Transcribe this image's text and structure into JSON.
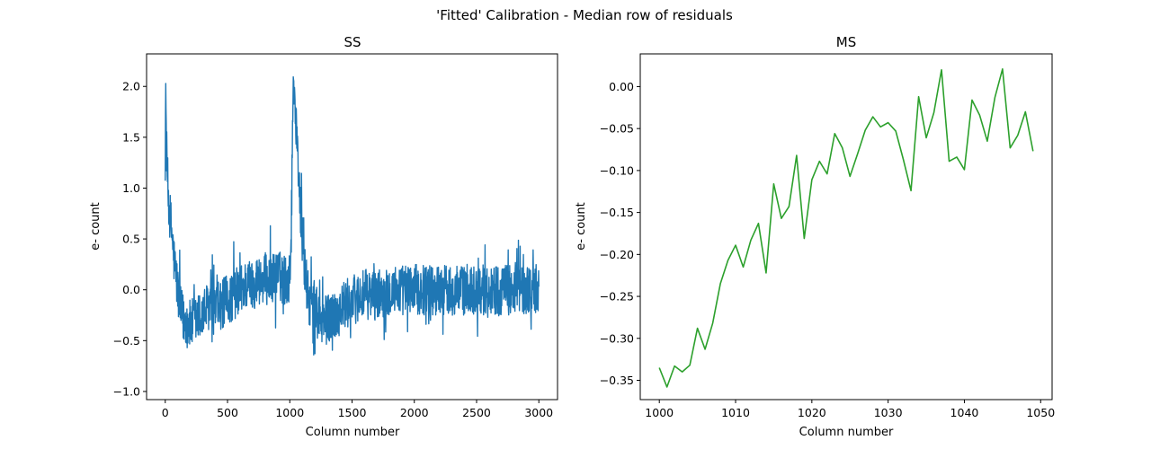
{
  "figure": {
    "suptitle": "'Fitted' Calibration - Median row of residuals"
  },
  "chart_data": [
    {
      "type": "line",
      "title": "SS",
      "xlabel": "Column number",
      "ylabel": "e- count",
      "xlim": [
        -150,
        3150
      ],
      "ylim": [
        -1.08,
        2.32
      ],
      "xticks": [
        0,
        500,
        1000,
        1500,
        2000,
        2500,
        3000
      ],
      "yticks": [
        -1.0,
        -0.5,
        0.0,
        0.5,
        1.0,
        1.5,
        2.0
      ],
      "xtick_labels": [
        "0",
        "500",
        "1000",
        "1500",
        "2000",
        "2500",
        "3000"
      ],
      "ytick_labels": [
        "−1.0",
        "−0.5",
        "0.0",
        "0.5",
        "1.0",
        "1.5",
        "2.0"
      ],
      "series": [
        {
          "color": "#1f77b4",
          "x": [
            0,
            5,
            10,
            15,
            20,
            25,
            30,
            40,
            50,
            60,
            70,
            80,
            100,
            120,
            150,
            200,
            250,
            300,
            350,
            400,
            450,
            500,
            550,
            600,
            650,
            700,
            750,
            800,
            850,
            900,
            950,
            1000,
            1010,
            1020,
            1030,
            1040,
            1050,
            1060,
            1070,
            1080,
            1100,
            1120,
            1150,
            1200,
            1250,
            1300,
            1350,
            1400,
            1450,
            1500,
            1600,
            1700,
            1800,
            1900,
            2000,
            2100,
            2200,
            2300,
            2400,
            2500,
            2600,
            2700,
            2800,
            2900,
            3000
          ],
          "y": [
            1.6,
            1.88,
            1.4,
            1.2,
            1.05,
            0.9,
            0.85,
            0.7,
            0.6,
            0.45,
            0.3,
            0.2,
            0.0,
            -0.2,
            -0.3,
            -0.35,
            -0.3,
            -0.25,
            -0.15,
            -0.2,
            -0.15,
            -0.1,
            -0.05,
            0.0,
            0.05,
            0.05,
            0.1,
            0.1,
            0.1,
            0.15,
            0.1,
            0.1,
            0.5,
            1.3,
            2.16,
            1.9,
            1.6,
            1.4,
            1.2,
            0.9,
            0.5,
            0.2,
            -0.1,
            -0.2,
            -0.3,
            -0.3,
            -0.25,
            -0.2,
            -0.15,
            -0.1,
            -0.05,
            -0.05,
            0.0,
            0.0,
            0.0,
            0.0,
            0.0,
            0.0,
            0.0,
            0.0,
            0.0,
            0.0,
            0.0,
            0.0,
            0.0
          ],
          "noise_amplitude": 0.25
        }
      ]
    },
    {
      "type": "line",
      "title": "MS",
      "xlabel": "Column number",
      "ylabel": "e- count",
      "xlim": [
        997.5,
        1051.5
      ],
      "ylim": [
        -0.373,
        0.039
      ],
      "xticks": [
        1000,
        1010,
        1020,
        1030,
        1040,
        1050
      ],
      "yticks": [
        -0.35,
        -0.3,
        -0.25,
        -0.2,
        -0.15,
        -0.1,
        -0.05,
        0.0
      ],
      "xtick_labels": [
        "1000",
        "1010",
        "1020",
        "1030",
        "1040",
        "1050"
      ],
      "ytick_labels": [
        "−0.35",
        "−0.30",
        "−0.25",
        "−0.20",
        "−0.15",
        "−0.10",
        "−0.05",
        "0.00"
      ],
      "series": [
        {
          "color": "#2ca02c",
          "x": [
            1000,
            1001,
            1002,
            1003,
            1004,
            1005,
            1006,
            1007,
            1008,
            1009,
            1010,
            1011,
            1012,
            1013,
            1014,
            1015,
            1016,
            1017,
            1018,
            1019,
            1020,
            1021,
            1022,
            1023,
            1024,
            1025,
            1026,
            1027,
            1028,
            1029,
            1030,
            1031,
            1032,
            1033,
            1034,
            1035,
            1036,
            1037,
            1038,
            1039,
            1040,
            1041,
            1042,
            1043,
            1044,
            1045,
            1046,
            1047,
            1048,
            1049
          ],
          "y": [
            -0.335,
            -0.358,
            -0.333,
            -0.34,
            -0.332,
            -0.288,
            -0.313,
            -0.282,
            -0.235,
            -0.207,
            -0.189,
            -0.215,
            -0.183,
            -0.163,
            -0.222,
            -0.116,
            -0.157,
            -0.143,
            -0.082,
            -0.181,
            -0.111,
            -0.089,
            -0.104,
            -0.056,
            -0.073,
            -0.107,
            -0.08,
            -0.052,
            -0.036,
            -0.048,
            -0.043,
            -0.053,
            -0.087,
            -0.124,
            -0.012,
            -0.061,
            -0.031,
            0.02,
            -0.089,
            -0.084,
            -0.099,
            -0.016,
            -0.034,
            -0.065,
            -0.013,
            0.021,
            -0.073,
            -0.058,
            -0.03,
            -0.077
          ]
        }
      ]
    }
  ]
}
